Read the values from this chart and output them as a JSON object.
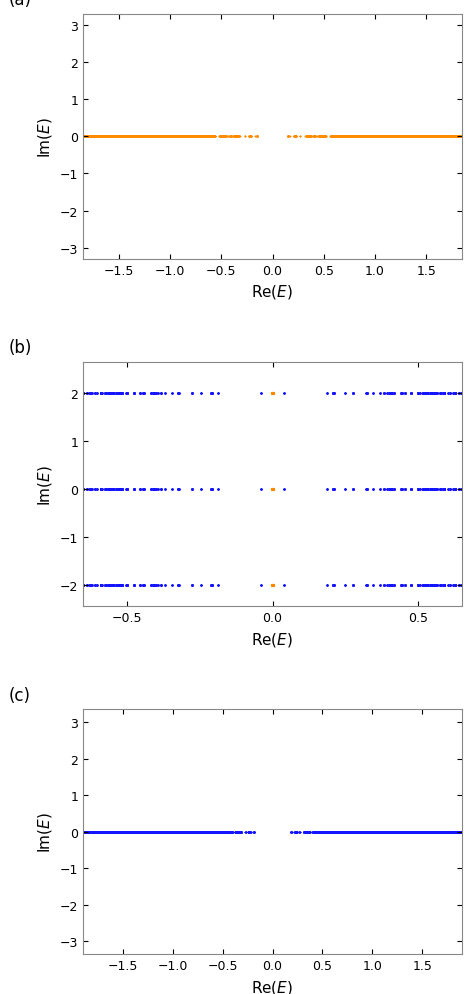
{
  "panel_a": {
    "xlim": [
      -1.85,
      1.85
    ],
    "ylim": [
      -3.3,
      3.3
    ],
    "xticks": [
      -1.5,
      -1.0,
      -0.5,
      0.0,
      0.5,
      1.0,
      1.5
    ],
    "yticks": [
      -3.0,
      -2.0,
      -1.0,
      0.0,
      1.0,
      2.0,
      3.0
    ],
    "label": "(a)"
  },
  "panel_b": {
    "xlim": [
      -0.65,
      0.65
    ],
    "ylim": [
      -2.45,
      2.65
    ],
    "xticks": [
      -0.5,
      0.0,
      0.5
    ],
    "yticks": [
      -2.0,
      -1.0,
      0.0,
      1.0,
      2.0
    ],
    "label": "(b)"
  },
  "panel_c": {
    "xlim": [
      -1.9,
      1.9
    ],
    "ylim": [
      -3.35,
      3.35
    ],
    "xticks": [
      -1.5,
      -1.0,
      -0.5,
      0.0,
      0.5,
      1.0,
      1.5
    ],
    "yticks": [
      -3.0,
      -2.0,
      -1.0,
      0.0,
      1.0,
      2.0,
      3.0
    ],
    "label": "(c)"
  },
  "orange_color": "#FF8C00",
  "blue_color": "#1414FF",
  "fig_width": 4.74,
  "fig_height": 9.95
}
